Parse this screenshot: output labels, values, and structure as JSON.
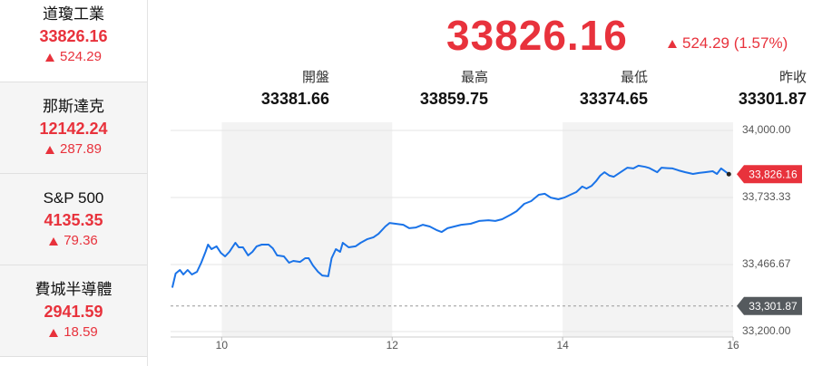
{
  "sidebar": [
    {
      "name": "道瓊工業",
      "price": "33826.16",
      "change": "524.29"
    },
    {
      "name": "那斯達克",
      "price": "12142.24",
      "change": "287.89"
    },
    {
      "name": "S&P 500",
      "price": "4135.35",
      "change": "79.36"
    },
    {
      "name": "費城半導體",
      "price": "2941.59",
      "change": "18.59"
    }
  ],
  "header": {
    "price": "33826.16",
    "change": "524.29 (1.57%)",
    "stats": [
      {
        "label": "開盤",
        "value": "33381.66"
      },
      {
        "label": "最高",
        "value": "33859.75"
      },
      {
        "label": "最低",
        "value": "33374.65"
      },
      {
        "label": "昨收",
        "value": "33301.87"
      }
    ]
  },
  "chart_data": {
    "type": "line",
    "color": "#1a73e8",
    "x": [
      9.42,
      9.46,
      9.51,
      9.55,
      9.6,
      9.65,
      9.71,
      9.76,
      9.81,
      9.84,
      9.88,
      9.94,
      9.99,
      10.04,
      10.09,
      10.16,
      10.2,
      10.25,
      10.31,
      10.36,
      10.41,
      10.47,
      10.55,
      10.6,
      10.65,
      10.73,
      10.79,
      10.84,
      10.92,
      10.98,
      11.02,
      11.07,
      11.13,
      11.18,
      11.25,
      11.29,
      11.34,
      11.39,
      11.42,
      11.49,
      11.57,
      11.63,
      11.71,
      11.78,
      11.84,
      11.92,
      11.97,
      12.04,
      12.13,
      12.2,
      12.28,
      12.36,
      12.44,
      12.52,
      12.58,
      12.65,
      12.73,
      12.81,
      12.92,
      13.02,
      13.13,
      13.21,
      13.29,
      13.39,
      13.46,
      13.55,
      13.63,
      13.72,
      13.79,
      13.86,
      13.95,
      14.02,
      14.09,
      14.16,
      14.23,
      14.28,
      14.34,
      14.39,
      14.44,
      14.49,
      14.55,
      14.6,
      14.68,
      14.76,
      14.83,
      14.89,
      14.97,
      15.02,
      15.11,
      15.16,
      15.23,
      15.29,
      15.36,
      15.44,
      15.53,
      15.6,
      15.67,
      15.76,
      15.81,
      15.86,
      15.95
    ],
    "values": [
      33374.65,
      33431,
      33445,
      33427,
      33445,
      33427,
      33438,
      33474,
      33517,
      33546,
      33528,
      33539,
      33513,
      33499,
      33517,
      33553,
      33535,
      33535,
      33503,
      33517,
      33539,
      33546,
      33546,
      33531,
      33503,
      33499,
      33474,
      33481,
      33477,
      33492,
      33492,
      33463,
      33438,
      33423,
      33420,
      33492,
      33528,
      33517,
      33553,
      33535,
      33539,
      33553,
      33568,
      33575,
      33589,
      33618,
      33632,
      33629,
      33625,
      33611,
      33614,
      33625,
      33618,
      33604,
      33596,
      33611,
      33618,
      33625,
      33629,
      33640,
      33643,
      33640,
      33647,
      33665,
      33679,
      33708,
      33719,
      33744,
      33748,
      33733,
      33726,
      33733,
      33744,
      33755,
      33777,
      33769,
      33780,
      33798,
      33820,
      33834,
      33820,
      33816,
      33834,
      33852,
      33849,
      33859.75,
      33855,
      33850,
      33834,
      33852,
      33850,
      33849,
      33841,
      33834,
      33827,
      33831,
      33834,
      33838,
      33827,
      33849,
      33826.16
    ],
    "xlim": [
      9.4,
      16
    ],
    "xticks": [
      10,
      12,
      14,
      16
    ],
    "ylim": [
      33200,
      34000
    ],
    "yticks": [
      {
        "value": 34000,
        "label": "34,000.00"
      },
      {
        "value": 33733.33,
        "label": "33,733.33"
      },
      {
        "value": 33466.67,
        "label": "33,466.67"
      },
      {
        "value": 33200,
        "label": "33,200.00"
      }
    ],
    "grid": true,
    "annotations": [
      {
        "value": 33826.16,
        "label": "33,826.16",
        "color": "#e8323c"
      },
      {
        "value": 33301.87,
        "label": "33,301.87",
        "color": "#555a5e"
      }
    ]
  }
}
